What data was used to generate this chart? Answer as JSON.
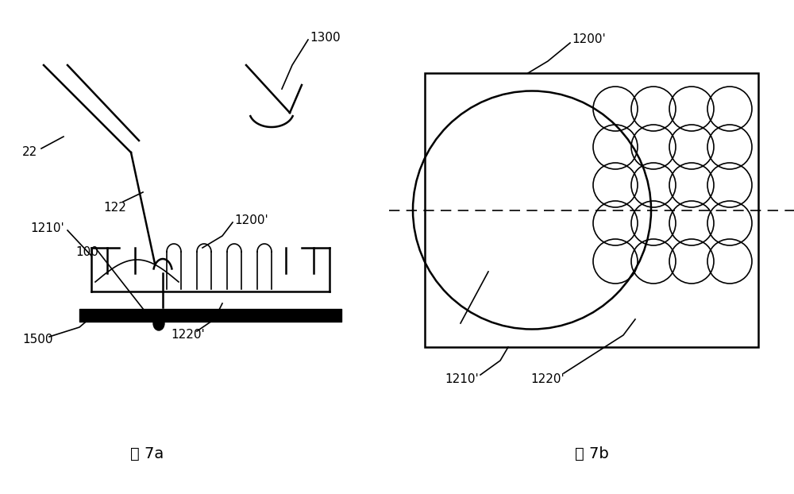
{
  "bg_color": "#ffffff",
  "fig_width": 10.0,
  "fig_height": 6.22,
  "title_7a": "图 7a",
  "title_7b": "图 7b",
  "color": "#000000",
  "lw_thin": 1.2,
  "lw_med": 1.8,
  "lw_thick": 5.0
}
